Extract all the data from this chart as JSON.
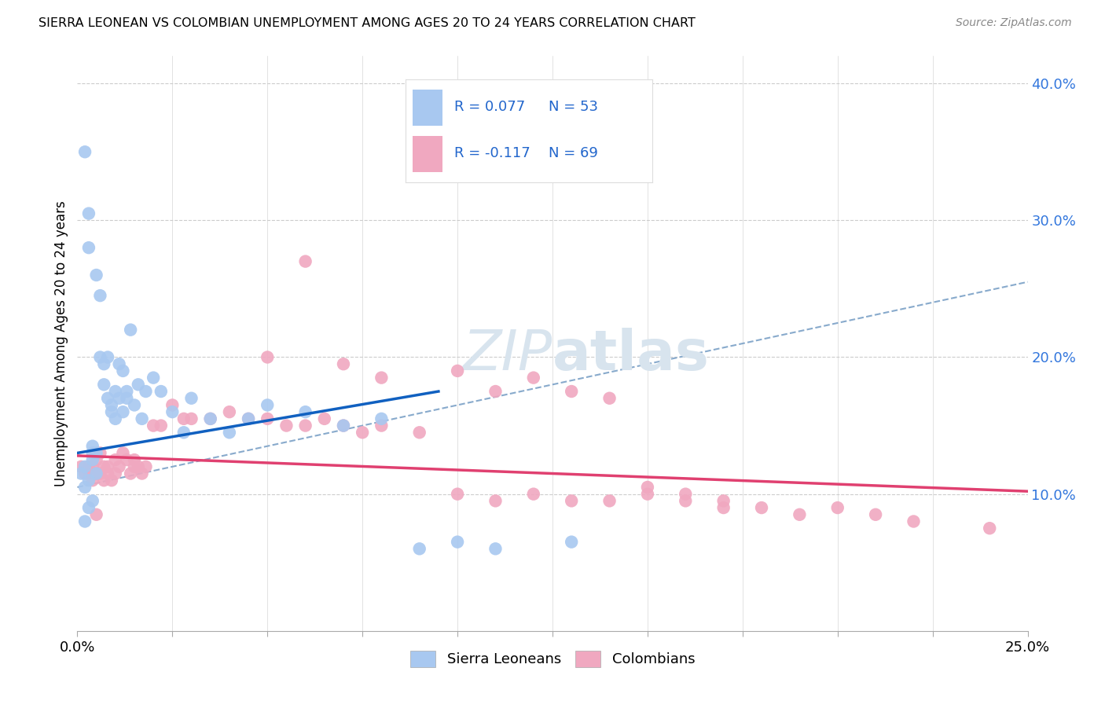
{
  "title": "SIERRA LEONEAN VS COLOMBIAN UNEMPLOYMENT AMONG AGES 20 TO 24 YEARS CORRELATION CHART",
  "source": "Source: ZipAtlas.com",
  "ylabel": "Unemployment Among Ages 20 to 24 years",
  "xlim": [
    0.0,
    0.25
  ],
  "ylim": [
    0.0,
    0.42
  ],
  "x_ticks": [
    0.0,
    0.025,
    0.05,
    0.075,
    0.1,
    0.125,
    0.15,
    0.175,
    0.2,
    0.225,
    0.25
  ],
  "x_tick_labels_show": {
    "0.0": "0.0%",
    "0.25": "25.0%"
  },
  "y_ticks_right": [
    0.1,
    0.2,
    0.3,
    0.4
  ],
  "y_tick_labels_right": [
    "10.0%",
    "20.0%",
    "30.0%",
    "40.0%"
  ],
  "sierra_R": 0.077,
  "sierra_N": 53,
  "colombian_R": -0.117,
  "colombian_N": 69,
  "sierra_color": "#A8C8F0",
  "colombian_color": "#F0A8C0",
  "sierra_line_color": "#1060C0",
  "colombian_line_color": "#E04070",
  "dashed_line_color": "#88AACC",
  "background_color": "#FFFFFF",
  "grid_color": "#CCCCCC",
  "watermark_color": "#D8E4EE",
  "sierra_x": [
    0.001,
    0.002,
    0.002,
    0.003,
    0.003,
    0.004,
    0.004,
    0.004,
    0.005,
    0.005,
    0.005,
    0.006,
    0.006,
    0.007,
    0.007,
    0.008,
    0.008,
    0.009,
    0.009,
    0.01,
    0.01,
    0.011,
    0.011,
    0.012,
    0.012,
    0.013,
    0.013,
    0.014,
    0.015,
    0.016,
    0.017,
    0.018,
    0.02,
    0.022,
    0.025,
    0.028,
    0.03,
    0.035,
    0.04,
    0.045,
    0.05,
    0.06,
    0.07,
    0.08,
    0.09,
    0.1,
    0.11,
    0.13,
    0.002,
    0.003,
    0.002,
    0.004,
    0.003
  ],
  "sierra_y": [
    0.115,
    0.12,
    0.35,
    0.305,
    0.28,
    0.13,
    0.135,
    0.125,
    0.26,
    0.13,
    0.115,
    0.245,
    0.2,
    0.195,
    0.18,
    0.2,
    0.17,
    0.16,
    0.165,
    0.175,
    0.155,
    0.195,
    0.17,
    0.19,
    0.16,
    0.175,
    0.17,
    0.22,
    0.165,
    0.18,
    0.155,
    0.175,
    0.185,
    0.175,
    0.16,
    0.145,
    0.17,
    0.155,
    0.145,
    0.155,
    0.165,
    0.16,
    0.15,
    0.155,
    0.06,
    0.065,
    0.06,
    0.065,
    0.105,
    0.11,
    0.08,
    0.095,
    0.09
  ],
  "colombian_x": [
    0.001,
    0.002,
    0.003,
    0.003,
    0.004,
    0.004,
    0.005,
    0.005,
    0.006,
    0.006,
    0.007,
    0.007,
    0.008,
    0.008,
    0.009,
    0.01,
    0.01,
    0.011,
    0.012,
    0.013,
    0.014,
    0.015,
    0.015,
    0.016,
    0.017,
    0.018,
    0.02,
    0.022,
    0.025,
    0.028,
    0.03,
    0.035,
    0.04,
    0.045,
    0.05,
    0.055,
    0.06,
    0.065,
    0.07,
    0.075,
    0.08,
    0.09,
    0.1,
    0.11,
    0.12,
    0.13,
    0.14,
    0.15,
    0.16,
    0.17,
    0.18,
    0.19,
    0.2,
    0.21,
    0.22,
    0.05,
    0.06,
    0.07,
    0.08,
    0.1,
    0.11,
    0.12,
    0.13,
    0.14,
    0.15,
    0.16,
    0.17,
    0.24,
    0.005
  ],
  "colombian_y": [
    0.12,
    0.115,
    0.12,
    0.115,
    0.11,
    0.12,
    0.125,
    0.115,
    0.13,
    0.115,
    0.12,
    0.11,
    0.12,
    0.115,
    0.11,
    0.125,
    0.115,
    0.12,
    0.13,
    0.125,
    0.115,
    0.12,
    0.125,
    0.12,
    0.115,
    0.12,
    0.15,
    0.15,
    0.165,
    0.155,
    0.155,
    0.155,
    0.16,
    0.155,
    0.155,
    0.15,
    0.15,
    0.155,
    0.15,
    0.145,
    0.15,
    0.145,
    0.1,
    0.095,
    0.1,
    0.095,
    0.095,
    0.1,
    0.095,
    0.09,
    0.09,
    0.085,
    0.09,
    0.085,
    0.08,
    0.2,
    0.27,
    0.195,
    0.185,
    0.19,
    0.175,
    0.185,
    0.175,
    0.17,
    0.105,
    0.1,
    0.095,
    0.075,
    0.085
  ],
  "sierra_line_x": [
    0.0,
    0.095
  ],
  "sierra_line_y": [
    0.13,
    0.175
  ],
  "colombian_line_x": [
    0.0,
    0.25
  ],
  "colombian_line_y": [
    0.128,
    0.102
  ],
  "dashed_line_x": [
    0.0,
    0.25
  ],
  "dashed_line_y": [
    0.105,
    0.255
  ]
}
